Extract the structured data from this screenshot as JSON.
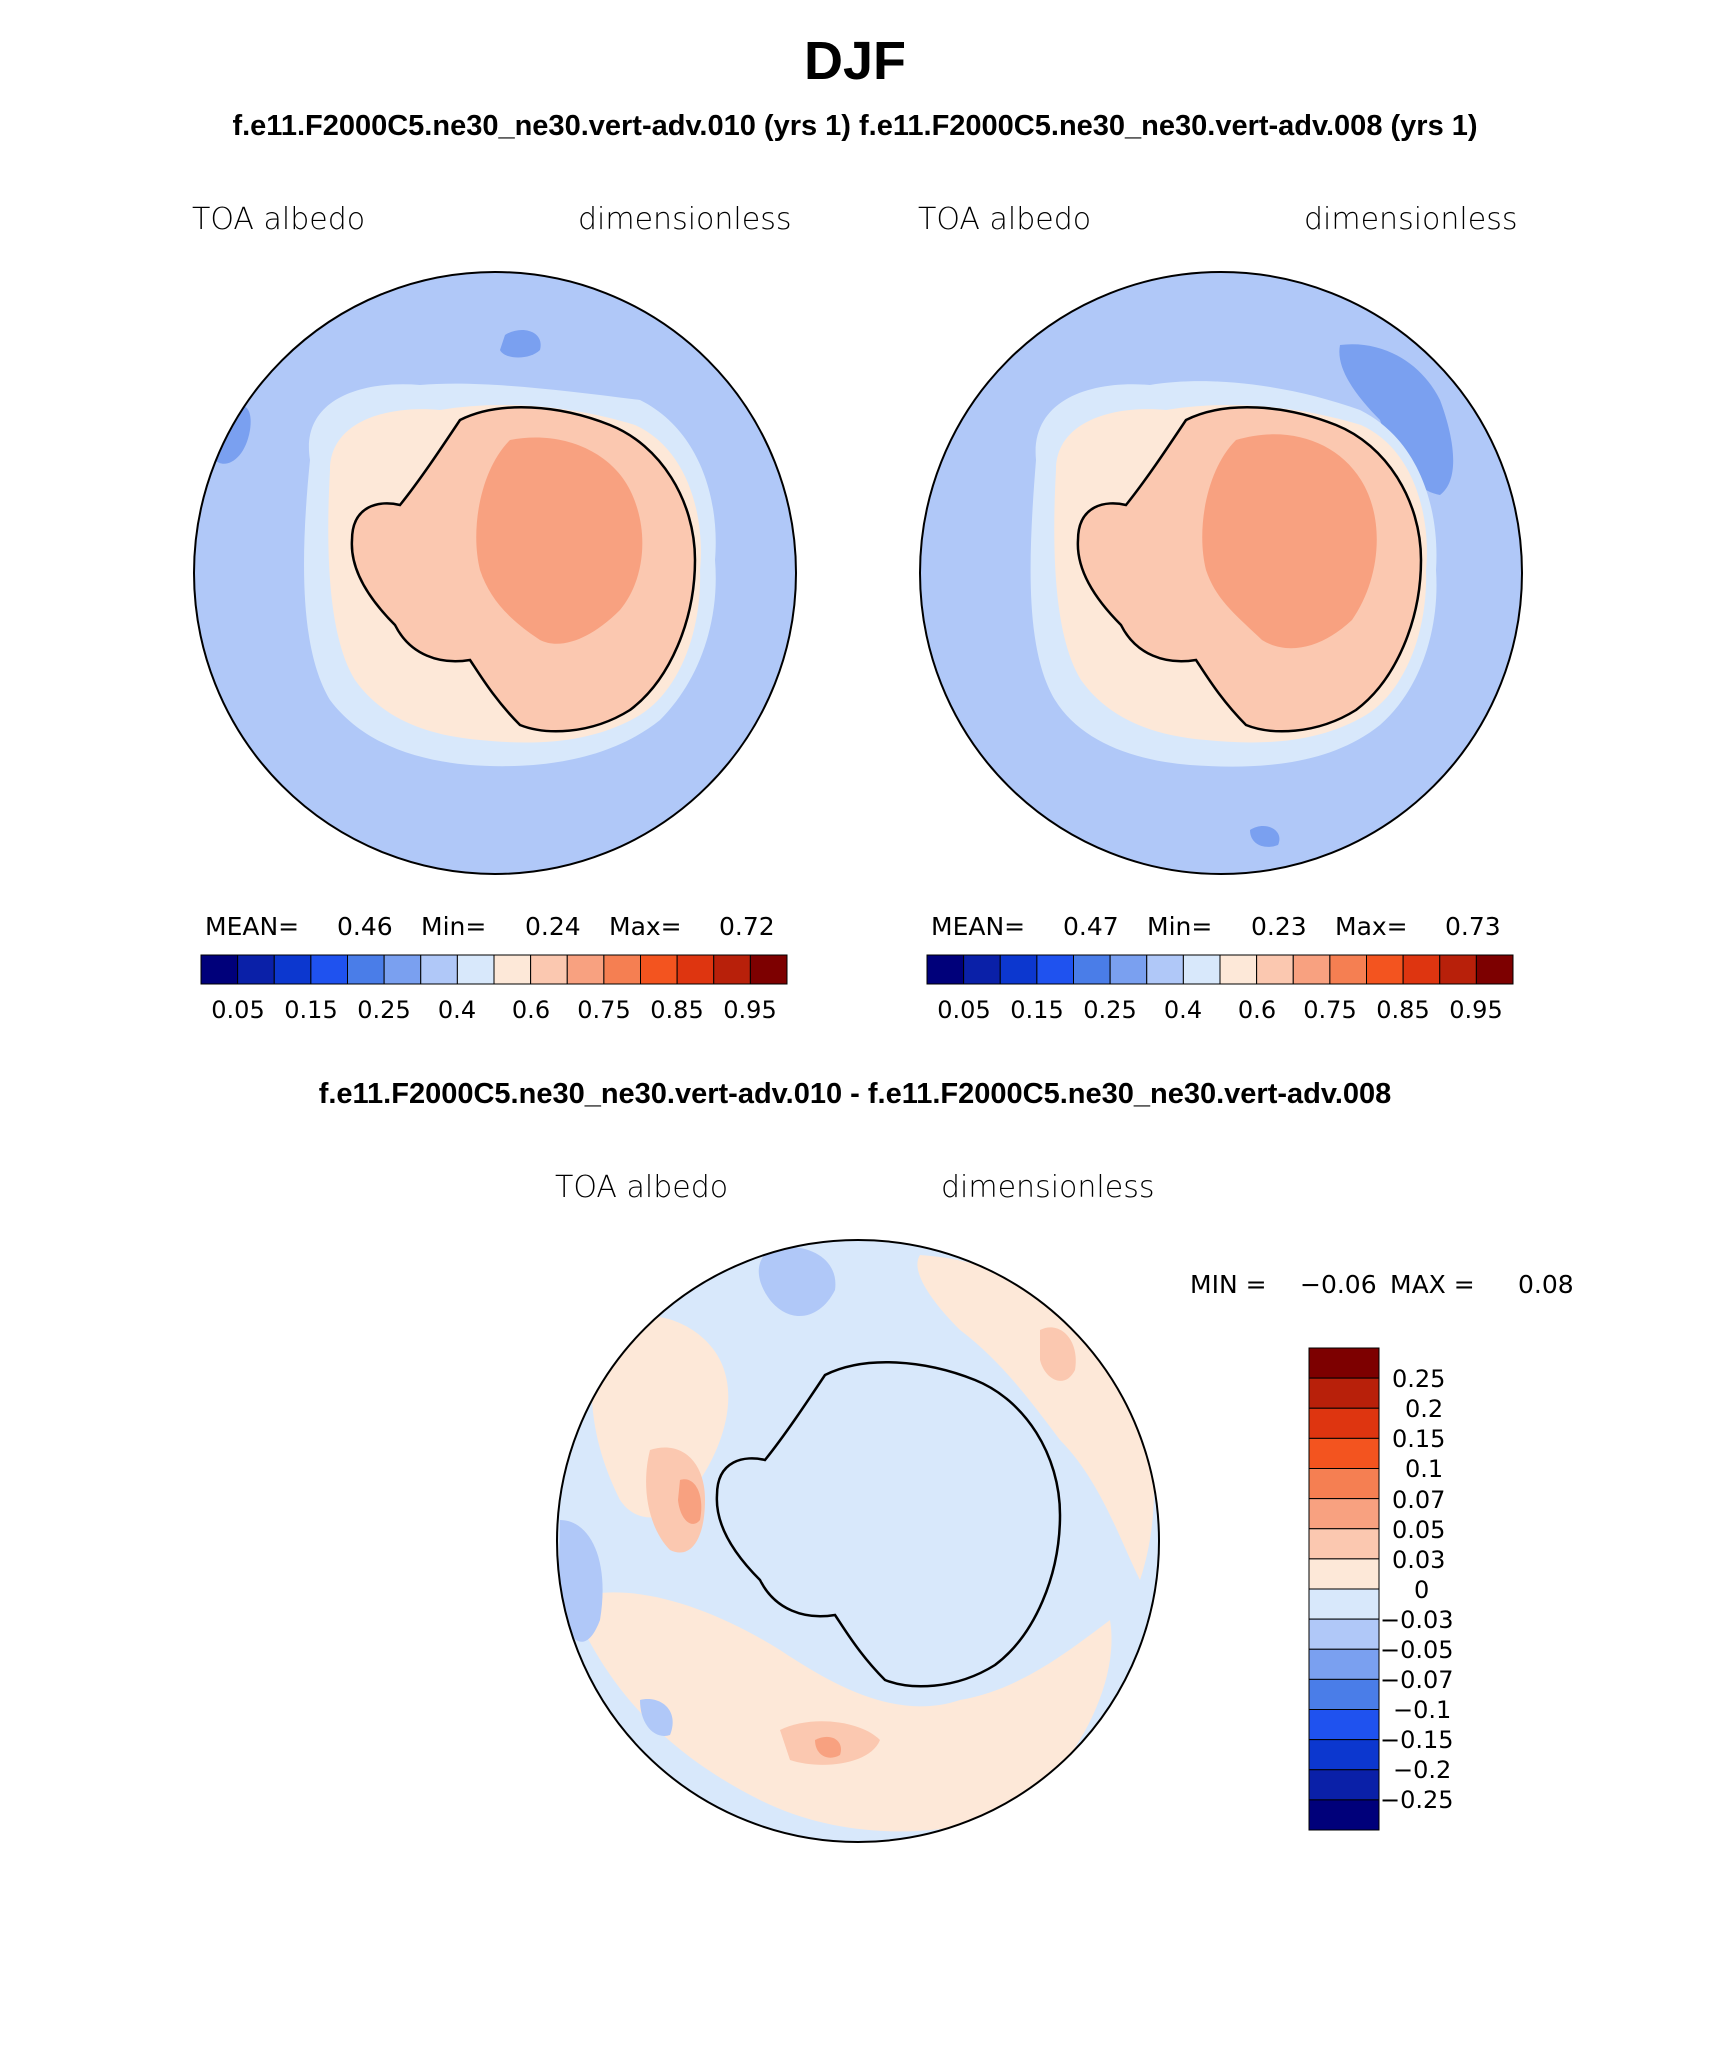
{
  "title": "DJF",
  "top_subtitle": "f.e11.F2000C5.ne30_ne30.vert-adv.010 (yrs 1) f.e11.F2000C5.ne30_ne30.vert-adv.008 (yrs 1)",
  "diff_subtitle": "f.e11.F2000C5.ne30_ne30.vert-adv.010 - f.e11.F2000C5.ne30_ne30.vert-adv.008",
  "panels": [
    {
      "variable": "TOA albedo",
      "units": "dimensionless",
      "stats": {
        "mean_label": "MEAN=",
        "mean": "0.46",
        "min_label": "Min=",
        "min": "0.24",
        "max_label": "Max=",
        "max": "0.72"
      }
    },
    {
      "variable": "TOA albedo",
      "units": "dimensionless",
      "stats": {
        "mean_label": "MEAN=",
        "mean": "0.47",
        "min_label": "Min=",
        "min": "0.23",
        "max_label": "Max=",
        "max": "0.73"
      }
    }
  ],
  "diff_panel": {
    "variable": "TOA albedo",
    "units": "dimensionless",
    "stats": {
      "min_label": "MIN =",
      "min": "−0.06",
      "max_label": "MAX =",
      "max": "0.08"
    }
  },
  "abs_colorbar": {
    "colors": [
      "#00007a",
      "#0a20a8",
      "#0c37cf",
      "#1f52ef",
      "#4a7de8",
      "#7aa0f0",
      "#b0c8f8",
      "#d8e8fb",
      "#fde8d8",
      "#fbc8b0",
      "#f8a180",
      "#f57f52",
      "#f3541f",
      "#de3510",
      "#b8200a",
      "#7d0000"
    ],
    "tick_labels": [
      "0.05",
      "0.15",
      "0.25",
      "0.4",
      "0.6",
      "0.75",
      "0.85",
      "0.95"
    ]
  },
  "diff_colorbar": {
    "colors": [
      "#7d0000",
      "#b8200a",
      "#de3510",
      "#f3541f",
      "#f57f52",
      "#f8a180",
      "#fbc8b0",
      "#fde8d8",
      "#d8e8fb",
      "#b0c8f8",
      "#7aa0f0",
      "#4a7de8",
      "#1f52ef",
      "#0c37cf",
      "#0a20a8",
      "#00007a"
    ],
    "tick_labels": [
      "0.25",
      "0.2",
      "0.15",
      "0.1",
      "0.07",
      "0.05",
      "0.03",
      "0",
      "−0.03",
      "−0.05",
      "−0.07",
      "−0.1",
      "−0.15",
      "−0.2",
      "−0.25"
    ]
  },
  "map_colors": {
    "ocean": "#b0c8f8",
    "ocean_dark": "#7aa0f0",
    "sea_ice": "#d8e8fb",
    "coast_band": "#fde8d8",
    "land": "#fbc8b0",
    "plateau": "#f8a180",
    "diff_bg": "#d8e8fb",
    "diff_pos": "#fde8d8",
    "diff_pos2": "#fbc8b0",
    "diff_pos3": "#f8a180",
    "diff_neg": "#b0c8f8",
    "diff_neg2": "#7aa0f0"
  }
}
